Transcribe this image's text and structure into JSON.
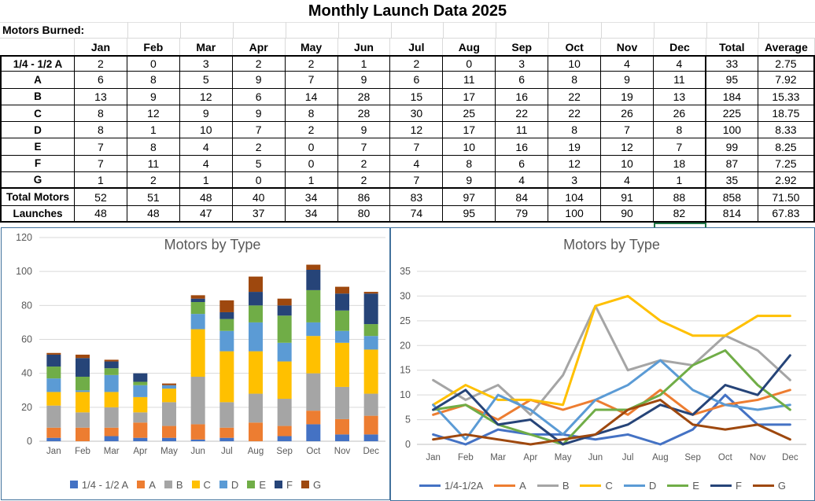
{
  "title": "Monthly Launch Data 2025",
  "table": {
    "section_label": "Motors Burned:",
    "corner_label": "",
    "columns": [
      "Jan",
      "Feb",
      "Mar",
      "Apr",
      "May",
      "Jun",
      "Jul",
      "Aug",
      "Sep",
      "Oct",
      "Nov",
      "Dec",
      "Total",
      "Average"
    ],
    "rows": [
      {
        "label": "1/4 - 1/2 A",
        "values": [
          2,
          0,
          3,
          2,
          2,
          1,
          2,
          0,
          3,
          10,
          4,
          4
        ],
        "total": 33,
        "average": "2.75"
      },
      {
        "label": "A",
        "values": [
          6,
          8,
          5,
          9,
          7,
          9,
          6,
          11,
          6,
          8,
          9,
          11
        ],
        "total": 95,
        "average": "7.92"
      },
      {
        "label": "B",
        "values": [
          13,
          9,
          12,
          6,
          14,
          28,
          15,
          17,
          16,
          22,
          19,
          13
        ],
        "total": 184,
        "average": "15.33"
      },
      {
        "label": "C",
        "values": [
          8,
          12,
          9,
          9,
          8,
          28,
          30,
          25,
          22,
          22,
          26,
          26
        ],
        "total": 225,
        "average": "18.75"
      },
      {
        "label": "D",
        "values": [
          8,
          1,
          10,
          7,
          2,
          9,
          12,
          17,
          11,
          8,
          7,
          8
        ],
        "total": 100,
        "average": "8.33"
      },
      {
        "label": "E",
        "values": [
          7,
          8,
          4,
          2,
          0,
          7,
          7,
          10,
          16,
          19,
          12,
          7
        ],
        "total": 99,
        "average": "8.25"
      },
      {
        "label": "F",
        "values": [
          7,
          11,
          4,
          5,
          0,
          2,
          4,
          8,
          6,
          12,
          10,
          18
        ],
        "total": 87,
        "average": "7.25"
      },
      {
        "label": "G",
        "values": [
          1,
          2,
          1,
          0,
          1,
          2,
          7,
          9,
          4,
          3,
          4,
          1
        ],
        "total": 35,
        "average": "2.92"
      },
      {
        "label": "Total Motors",
        "values": [
          52,
          51,
          48,
          40,
          34,
          86,
          83,
          97,
          84,
          104,
          91,
          88
        ],
        "total": 858,
        "average": "71.50"
      },
      {
        "label": "Launches",
        "values": [
          48,
          48,
          47,
          37,
          34,
          80,
          74,
          95,
          79,
          100,
          90,
          82
        ],
        "total": 814,
        "average": "67.83"
      }
    ]
  },
  "colors": {
    "chart_border": "#41719C",
    "gridline": "#D9D9D9",
    "axis_line": "#BFBFBF",
    "chart_text": "#595959",
    "selection_green": "#217346"
  },
  "chart_data": [
    {
      "type": "bar",
      "stacked": true,
      "title": "Motors by Type",
      "categories": [
        "Jan",
        "Feb",
        "Mar",
        "Apr",
        "May",
        "Jun",
        "Jul",
        "Aug",
        "Sep",
        "Oct",
        "Nov",
        "Dec"
      ],
      "series": [
        {
          "name": "1/4 - 1/2 A",
          "color": "#4472C4",
          "values": [
            2,
            0,
            3,
            2,
            2,
            1,
            2,
            0,
            3,
            10,
            4,
            4
          ]
        },
        {
          "name": "A",
          "color": "#ED7D31",
          "values": [
            6,
            8,
            5,
            9,
            7,
            9,
            6,
            11,
            6,
            8,
            9,
            11
          ]
        },
        {
          "name": "B",
          "color": "#A5A5A5",
          "values": [
            13,
            9,
            12,
            6,
            14,
            28,
            15,
            17,
            16,
            22,
            19,
            13
          ]
        },
        {
          "name": "C",
          "color": "#FFC000",
          "values": [
            8,
            12,
            9,
            9,
            8,
            28,
            30,
            25,
            22,
            22,
            26,
            26
          ]
        },
        {
          "name": "D",
          "color": "#5B9BD5",
          "values": [
            8,
            1,
            10,
            7,
            2,
            9,
            12,
            17,
            11,
            8,
            7,
            8
          ]
        },
        {
          "name": "E",
          "color": "#70AD47",
          "values": [
            7,
            8,
            4,
            2,
            0,
            7,
            7,
            10,
            16,
            19,
            12,
            7
          ]
        },
        {
          "name": "F",
          "color": "#264478",
          "values": [
            7,
            11,
            4,
            5,
            0,
            2,
            4,
            8,
            6,
            12,
            10,
            18
          ]
        },
        {
          "name": "G",
          "color": "#9E480E",
          "values": [
            1,
            2,
            1,
            0,
            1,
            2,
            7,
            9,
            4,
            3,
            4,
            1
          ]
        }
      ],
      "ylim": [
        0,
        120
      ],
      "ytick": 20,
      "grid": true,
      "legend_position": "bottom"
    },
    {
      "type": "line",
      "title": "Motors by Type",
      "categories": [
        "Jan",
        "Feb",
        "Mar",
        "Apr",
        "May",
        "Jun",
        "Jul",
        "Aug",
        "Sep",
        "Oct",
        "Nov",
        "Dec"
      ],
      "series": [
        {
          "name": "1/4-1/2A",
          "color": "#4472C4",
          "values": [
            2,
            0,
            3,
            2,
            2,
            1,
            2,
            0,
            3,
            10,
            4,
            4
          ]
        },
        {
          "name": "A",
          "color": "#ED7D31",
          "values": [
            6,
            8,
            5,
            9,
            7,
            9,
            6,
            11,
            6,
            8,
            9,
            11
          ]
        },
        {
          "name": "B",
          "color": "#A5A5A5",
          "values": [
            13,
            9,
            12,
            6,
            14,
            28,
            15,
            17,
            16,
            22,
            19,
            13
          ]
        },
        {
          "name": "C",
          "color": "#FFC000",
          "values": [
            8,
            12,
            9,
            9,
            8,
            28,
            30,
            25,
            22,
            22,
            26,
            26
          ]
        },
        {
          "name": "D",
          "color": "#5B9BD5",
          "values": [
            8,
            1,
            10,
            7,
            2,
            9,
            12,
            17,
            11,
            8,
            7,
            8
          ]
        },
        {
          "name": "E",
          "color": "#70AD47",
          "values": [
            7,
            8,
            4,
            2,
            0,
            7,
            7,
            10,
            16,
            19,
            12,
            7
          ]
        },
        {
          "name": "F",
          "color": "#264478",
          "values": [
            7,
            11,
            4,
            5,
            0,
            2,
            4,
            8,
            6,
            12,
            10,
            18
          ]
        },
        {
          "name": "G",
          "color": "#9E480E",
          "values": [
            1,
            2,
            1,
            0,
            1,
            2,
            7,
            9,
            4,
            3,
            4,
            1
          ]
        }
      ],
      "ylim": [
        0,
        35
      ],
      "ytick": 5,
      "grid": true,
      "legend_position": "bottom"
    }
  ]
}
